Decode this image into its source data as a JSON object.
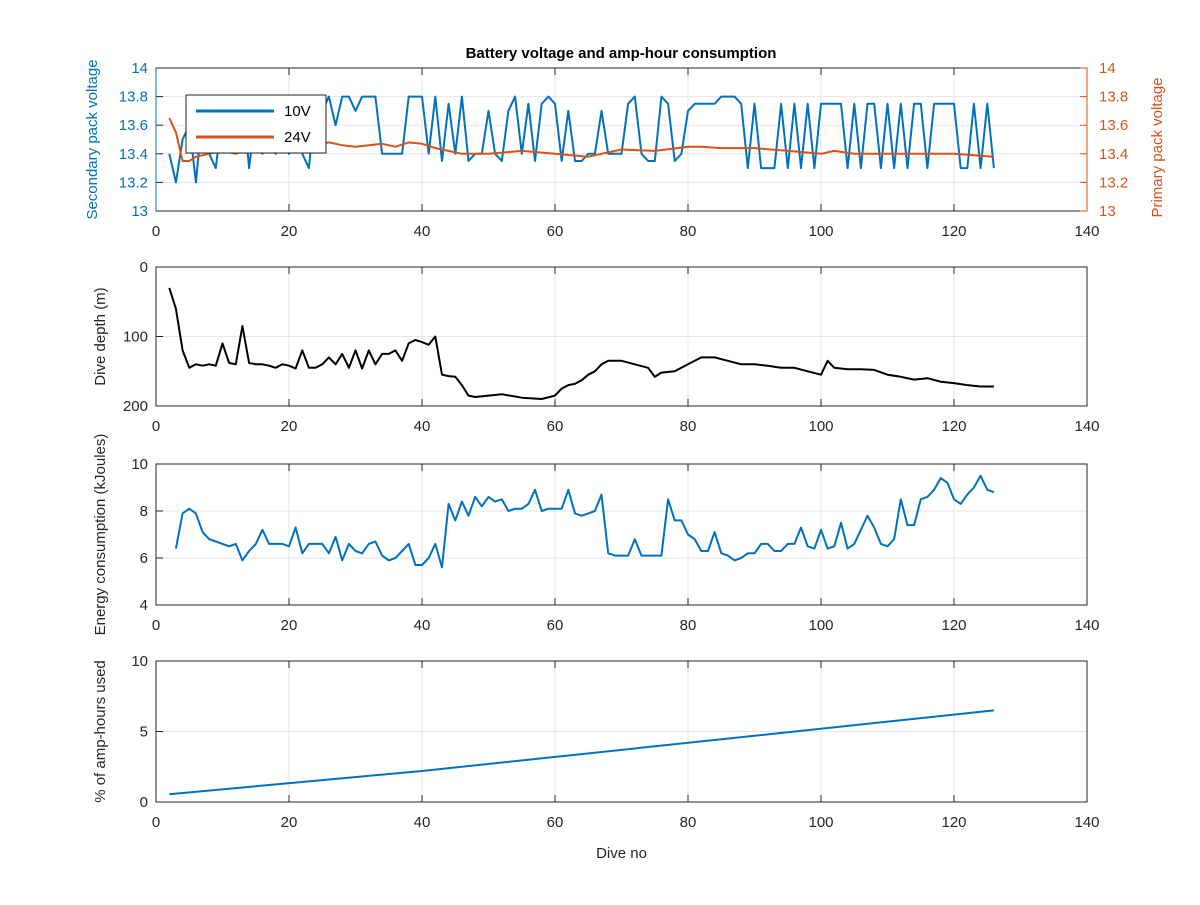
{
  "figure": {
    "title": "Battery voltage and amp-hour consumption"
  },
  "chart_data": [
    {
      "type": "line",
      "title": "Battery voltage and amp-hour consumption",
      "xlabel": "",
      "ylabel": "Secondary pack voltage",
      "ylabel_right": "Primary pack voltage",
      "xlim": [
        0,
        140
      ],
      "ylim": [
        13,
        14
      ],
      "ylim_right": [
        13,
        14
      ],
      "x_ticks": [
        "0",
        "20",
        "40",
        "60",
        "80",
        "100",
        "120",
        "140"
      ],
      "y_ticks": [
        "13",
        "13.2",
        "13.4",
        "13.6",
        "13.8",
        "14"
      ],
      "y_ticks_right": [
        "13",
        "13.2",
        "13.4",
        "13.6",
        "13.8",
        "14"
      ],
      "grid": true,
      "legend": "top-left",
      "series": [
        {
          "name": "10V",
          "axis": "left",
          "color": "#0072BD",
          "x": [
            2,
            3,
            4,
            5,
            6,
            7,
            8,
            9,
            10,
            11,
            12,
            13,
            14,
            15,
            16,
            17,
            18,
            19,
            20,
            21,
            22,
            23,
            24,
            25,
            26,
            27,
            28,
            29,
            30,
            31,
            32,
            33,
            34,
            35,
            36,
            37,
            38,
            39,
            40,
            41,
            42,
            43,
            44,
            45,
            46,
            47,
            48,
            49,
            50,
            51,
            52,
            53,
            54,
            55,
            56,
            57,
            58,
            59,
            60,
            61,
            62,
            63,
            64,
            65,
            66,
            67,
            68,
            69,
            70,
            71,
            72,
            73,
            74,
            75,
            76,
            77,
            78,
            79,
            80,
            81,
            82,
            83,
            84,
            85,
            86,
            87,
            88,
            89,
            90,
            91,
            92,
            93,
            94,
            95,
            96,
            97,
            98,
            99,
            100,
            101,
            102,
            103,
            104,
            105,
            106,
            107,
            108,
            109,
            110,
            111,
            112,
            113,
            114,
            115,
            116,
            117,
            118,
            119,
            120,
            121,
            122,
            123,
            124,
            125,
            126
          ],
          "values": [
            13.4,
            13.2,
            13.5,
            13.6,
            13.2,
            13.7,
            13.4,
            13.3,
            13.7,
            13.5,
            13.5,
            13.8,
            13.3,
            13.7,
            13.4,
            13.5,
            13.4,
            13.5,
            13.4,
            13.7,
            13.4,
            13.3,
            13.8,
            13.7,
            13.8,
            13.6,
            13.8,
            13.8,
            13.7,
            13.8,
            13.8,
            13.8,
            13.4,
            13.4,
            13.4,
            13.4,
            13.8,
            13.8,
            13.8,
            13.4,
            13.8,
            13.35,
            13.75,
            13.4,
            13.8,
            13.35,
            13.4,
            13.4,
            13.7,
            13.4,
            13.35,
            13.7,
            13.8,
            13.4,
            13.75,
            13.35,
            13.75,
            13.8,
            13.75,
            13.35,
            13.7,
            13.35,
            13.35,
            13.4,
            13.4,
            13.7,
            13.4,
            13.4,
            13.4,
            13.75,
            13.8,
            13.4,
            13.35,
            13.35,
            13.8,
            13.75,
            13.35,
            13.4,
            13.7,
            13.75,
            13.75,
            13.75,
            13.75,
            13.8,
            13.8,
            13.8,
            13.75,
            13.3,
            13.75,
            13.3,
            13.3,
            13.3,
            13.75,
            13.3,
            13.75,
            13.3,
            13.75,
            13.3,
            13.75,
            13.75,
            13.75,
            13.75,
            13.3,
            13.75,
            13.3,
            13.75,
            13.75,
            13.3,
            13.75,
            13.3,
            13.75,
            13.3,
            13.75,
            13.75,
            13.3,
            13.75,
            13.75,
            13.75,
            13.75,
            13.3,
            13.3,
            13.75,
            13.3,
            13.75,
            13.3
          ]
        },
        {
          "name": "24V",
          "axis": "right",
          "color": "#D95319",
          "x": [
            2,
            3,
            4,
            5,
            6,
            8,
            10,
            12,
            14,
            16,
            18,
            20,
            22,
            24,
            26,
            28,
            30,
            32,
            34,
            36,
            38,
            40,
            42,
            44,
            46,
            50,
            55,
            60,
            65,
            70,
            75,
            80,
            82,
            85,
            90,
            95,
            100,
            102,
            105,
            110,
            115,
            120,
            126
          ],
          "values": [
            13.65,
            13.55,
            13.35,
            13.35,
            13.38,
            13.4,
            13.42,
            13.4,
            13.44,
            13.42,
            13.45,
            13.45,
            13.44,
            13.46,
            13.48,
            13.46,
            13.45,
            13.46,
            13.47,
            13.45,
            13.48,
            13.47,
            13.44,
            13.42,
            13.4,
            13.4,
            13.42,
            13.4,
            13.38,
            13.43,
            13.42,
            13.45,
            13.45,
            13.44,
            13.44,
            13.42,
            13.4,
            13.42,
            13.4,
            13.4,
            13.4,
            13.4,
            13.38
          ]
        }
      ]
    },
    {
      "type": "line",
      "title": "",
      "xlabel": "",
      "ylabel": "Dive depth (m)",
      "xlim": [
        0,
        140
      ],
      "ylim": [
        0,
        200
      ],
      "y_reversed": true,
      "x_ticks": [
        "0",
        "20",
        "40",
        "60",
        "80",
        "100",
        "120",
        "140"
      ],
      "y_ticks": [
        "0",
        "100",
        "200"
      ],
      "grid": true,
      "series": [
        {
          "color": "#000000",
          "x": [
            2,
            3,
            4,
            5,
            6,
            7,
            8,
            9,
            10,
            11,
            12,
            13,
            14,
            15,
            16,
            17,
            18,
            19,
            20,
            21,
            22,
            23,
            24,
            25,
            26,
            27,
            28,
            29,
            30,
            31,
            32,
            33,
            34,
            35,
            36,
            37,
            38,
            39,
            40,
            41,
            42,
            43,
            44,
            45,
            46,
            47,
            48,
            50,
            52,
            55,
            58,
            60,
            61,
            62,
            63,
            64,
            65,
            66,
            67,
            68,
            70,
            72,
            74,
            75,
            76,
            78,
            80,
            82,
            84,
            86,
            88,
            90,
            92,
            94,
            96,
            98,
            100,
            101,
            102,
            104,
            106,
            108,
            110,
            112,
            114,
            116,
            118,
            120,
            122,
            124,
            126
          ],
          "values": [
            30,
            60,
            120,
            145,
            140,
            142,
            140,
            142,
            110,
            138,
            140,
            85,
            138,
            140,
            140,
            142,
            145,
            140,
            142,
            146,
            120,
            145,
            145,
            140,
            130,
            140,
            125,
            145,
            120,
            146,
            120,
            140,
            125,
            125,
            120,
            135,
            110,
            105,
            108,
            112,
            100,
            155,
            157,
            158,
            170,
            185,
            187,
            185,
            183,
            188,
            190,
            185,
            175,
            170,
            168,
            163,
            155,
            150,
            140,
            135,
            135,
            140,
            145,
            158,
            152,
            150,
            140,
            130,
            130,
            135,
            140,
            140,
            142,
            145,
            145,
            150,
            155,
            135,
            145,
            147,
            147,
            148,
            155,
            158,
            162,
            160,
            165,
            167,
            170,
            172,
            172
          ]
        }
      ]
    },
    {
      "type": "line",
      "title": "",
      "xlabel": "",
      "ylabel": "Energy consumption (kJoules)",
      "xlim": [
        0,
        140
      ],
      "ylim": [
        4,
        10
      ],
      "x_ticks": [
        "0",
        "20",
        "40",
        "60",
        "80",
        "100",
        "120",
        "140"
      ],
      "y_ticks": [
        "4",
        "6",
        "8",
        "10"
      ],
      "grid": true,
      "series": [
        {
          "color": "#0072BD",
          "x": [
            3,
            4,
            5,
            6,
            7,
            8,
            9,
            10,
            11,
            12,
            13,
            14,
            15,
            16,
            17,
            18,
            19,
            20,
            21,
            22,
            23,
            24,
            25,
            26,
            27,
            28,
            29,
            30,
            31,
            32,
            33,
            34,
            35,
            36,
            37,
            38,
            39,
            40,
            41,
            42,
            43,
            44,
            45,
            46,
            47,
            48,
            49,
            50,
            51,
            52,
            53,
            54,
            55,
            56,
            57,
            58,
            59,
            60,
            61,
            62,
            63,
            64,
            65,
            66,
            67,
            68,
            69,
            70,
            71,
            72,
            73,
            74,
            75,
            76,
            77,
            78,
            79,
            80,
            81,
            82,
            83,
            84,
            85,
            86,
            87,
            88,
            89,
            90,
            91,
            92,
            93,
            94,
            95,
            96,
            97,
            98,
            99,
            100,
            101,
            102,
            103,
            104,
            105,
            106,
            107,
            108,
            109,
            110,
            111,
            112,
            113,
            114,
            115,
            116,
            117,
            118,
            119,
            120,
            121,
            122,
            123,
            124,
            125,
            126
          ],
          "values": [
            6.4,
            7.9,
            8.1,
            7.9,
            7.1,
            6.8,
            6.7,
            6.6,
            6.5,
            6.6,
            5.9,
            6.3,
            6.6,
            7.2,
            6.6,
            6.6,
            6.6,
            6.5,
            7.3,
            6.2,
            6.6,
            6.6,
            6.6,
            6.2,
            6.9,
            5.9,
            6.6,
            6.3,
            6.2,
            6.6,
            6.7,
            6.1,
            5.9,
            6.0,
            6.3,
            6.6,
            5.7,
            5.7,
            6.0,
            6.6,
            5.6,
            8.3,
            7.6,
            8.4,
            7.8,
            8.6,
            8.2,
            8.6,
            8.4,
            8.5,
            8.0,
            8.1,
            8.1,
            8.3,
            8.9,
            8.0,
            8.1,
            8.1,
            8.1,
            8.9,
            7.9,
            7.8,
            7.9,
            8.0,
            8.7,
            6.2,
            6.1,
            6.1,
            6.1,
            6.8,
            6.1,
            6.1,
            6.1,
            6.1,
            8.5,
            7.6,
            7.6,
            7.0,
            6.8,
            6.3,
            6.3,
            7.1,
            6.2,
            6.1,
            5.9,
            6.0,
            6.2,
            6.2,
            6.6,
            6.6,
            6.3,
            6.3,
            6.6,
            6.6,
            7.3,
            6.5,
            6.4,
            7.2,
            6.4,
            6.5,
            7.5,
            6.4,
            6.6,
            7.2,
            7.8,
            7.3,
            6.6,
            6.5,
            6.8,
            8.5,
            7.4,
            7.4,
            8.5,
            8.6,
            8.9,
            9.4,
            9.2,
            8.5,
            8.3,
            8.7,
            9.0,
            9.5,
            8.9,
            8.8
          ]
        }
      ]
    },
    {
      "type": "line",
      "title": "",
      "xlabel": "Dive no",
      "ylabel": "% of amp-hours used",
      "xlim": [
        0,
        140
      ],
      "ylim": [
        0,
        10
      ],
      "x_ticks": [
        "0",
        "20",
        "40",
        "60",
        "80",
        "100",
        "120",
        "140"
      ],
      "y_ticks": [
        "0",
        "5",
        "10"
      ],
      "grid": true,
      "series": [
        {
          "color": "#0072BD",
          "x": [
            2,
            40,
            126
          ],
          "values": [
            0.55,
            2.2,
            6.5
          ]
        }
      ]
    }
  ]
}
